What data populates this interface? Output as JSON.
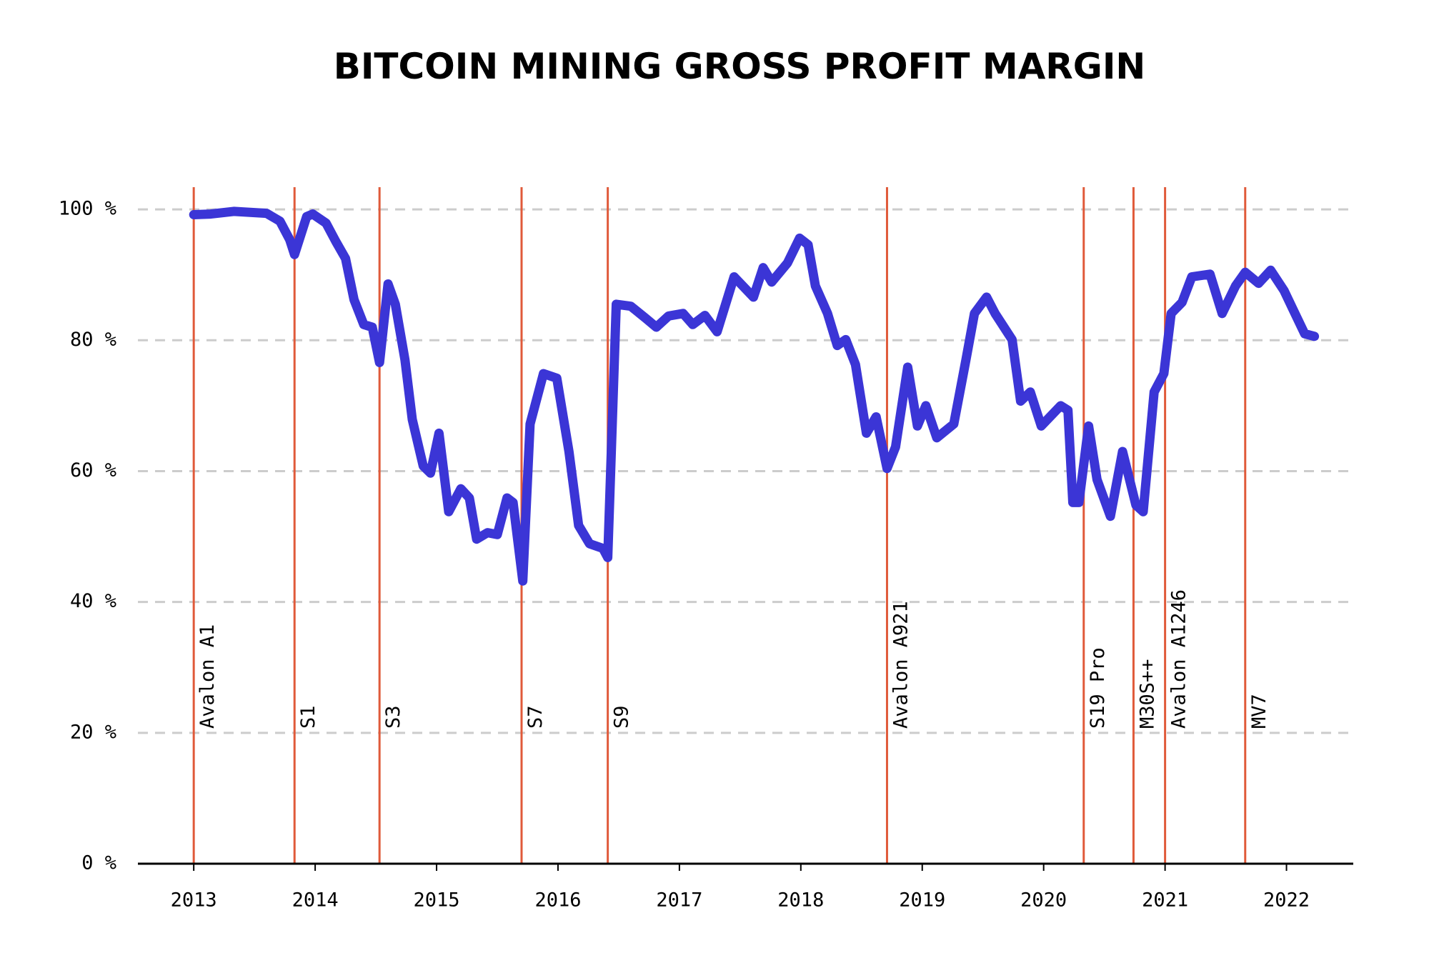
{
  "chart_data": {
    "type": "line",
    "title": "BITCOIN MINING GROSS PROFIT MARGIN",
    "x": [
      2013.0,
      2013.14,
      2013.33,
      2013.6,
      2013.71,
      2013.79,
      2013.83,
      2013.93,
      2013.98,
      2014.09,
      2014.17,
      2014.25,
      2014.32,
      2014.4,
      2014.47,
      2014.53,
      2014.6,
      2014.66,
      2014.74,
      2014.8,
      2014.89,
      2014.95,
      2015.02,
      2015.1,
      2015.2,
      2015.27,
      2015.33,
      2015.42,
      2015.5,
      2015.58,
      2015.63,
      2015.71,
      2015.77,
      2015.88,
      2015.99,
      2016.09,
      2016.17,
      2016.26,
      2016.37,
      2016.41,
      2016.48,
      2016.6,
      2016.72,
      2016.81,
      2016.91,
      2017.03,
      2017.11,
      2017.21,
      2017.31,
      2017.45,
      2017.61,
      2017.69,
      2017.76,
      2017.89,
      2017.99,
      2018.06,
      2018.12,
      2018.22,
      2018.3,
      2018.37,
      2018.45,
      2018.54,
      2018.62,
      2018.71,
      2018.78,
      2018.88,
      2018.96,
      2019.03,
      2019.12,
      2019.26,
      2019.36,
      2019.43,
      2019.53,
      2019.6,
      2019.74,
      2019.81,
      2019.89,
      2019.98,
      2020.14,
      2020.2,
      2020.24,
      2020.29,
      2020.37,
      2020.44,
      2020.55,
      2020.65,
      2020.76,
      2020.82,
      2020.91,
      2020.99,
      2021.05,
      2021.14,
      2021.22,
      2021.37,
      2021.47,
      2021.58,
      2021.66,
      2021.77,
      2021.87,
      2021.98,
      2022.07,
      2022.15,
      2022.23
    ],
    "values": [
      99.2,
      99.3,
      99.7,
      99.4,
      98.2,
      95.4,
      93.1,
      98.9,
      99.3,
      97.9,
      95.1,
      92.5,
      86.2,
      82.4,
      82.0,
      76.6,
      88.6,
      85.5,
      77.0,
      67.9,
      60.8,
      59.7,
      65.8,
      53.8,
      57.3,
      55.9,
      49.6,
      50.6,
      50.3,
      55.9,
      55.2,
      43.2,
      67.2,
      74.9,
      74.2,
      63.0,
      51.7,
      48.9,
      48.2,
      46.8,
      85.5,
      85.2,
      83.4,
      82.0,
      83.7,
      84.1,
      82.4,
      83.8,
      81.3,
      89.7,
      86.6,
      91.1,
      88.9,
      91.8,
      95.6,
      94.6,
      88.3,
      84.1,
      79.2,
      80.1,
      76.3,
      65.8,
      68.3,
      60.4,
      63.7,
      75.9,
      66.9,
      70.0,
      65.1,
      67.2,
      77.0,
      84.1,
      86.6,
      84.1,
      80.1,
      70.7,
      72.1,
      66.9,
      70.0,
      69.3,
      55.2,
      55.2,
      66.9,
      58.7,
      53.1,
      63.0,
      54.8,
      53.8,
      72.1,
      74.9,
      84.1,
      85.8,
      89.7,
      90.1,
      84.1,
      88.3,
      90.4,
      88.7,
      90.7,
      87.6,
      84.1,
      81.0,
      80.6
    ],
    "color": "#3b35d6",
    "events": [
      {
        "label": "Avalon A1",
        "x": 2013.0
      },
      {
        "label": "S1",
        "x": 2013.83
      },
      {
        "label": "S3",
        "x": 2014.53
      },
      {
        "label": "S7",
        "x": 2015.7
      },
      {
        "label": "S9",
        "x": 2016.41
      },
      {
        "label": "Avalon A921",
        "x": 2018.71
      },
      {
        "label": "S19 Pro",
        "x": 2020.33
      },
      {
        "label": "M30S++",
        "x": 2020.74
      },
      {
        "label": "Avalon A1246",
        "x": 2021.0
      },
      {
        "label": "MV7",
        "x": 2021.66
      }
    ],
    "event_color": "#e05a3a",
    "xlim": [
      2012.54,
      2022.55
    ],
    "xticks": [
      2013,
      2014,
      2015,
      2016,
      2017,
      2018,
      2019,
      2020,
      2021,
      2022
    ],
    "ylim": [
      0,
      103.4
    ],
    "yticks": [
      {
        "value": 0,
        "label": "0 %"
      },
      {
        "value": 20,
        "label": "20 %"
      },
      {
        "value": 40,
        "label": "40 %"
      },
      {
        "value": 60,
        "label": "60 %"
      },
      {
        "value": 80,
        "label": "80 %"
      },
      {
        "value": 100,
        "label": "100 %"
      }
    ],
    "grid": true
  }
}
